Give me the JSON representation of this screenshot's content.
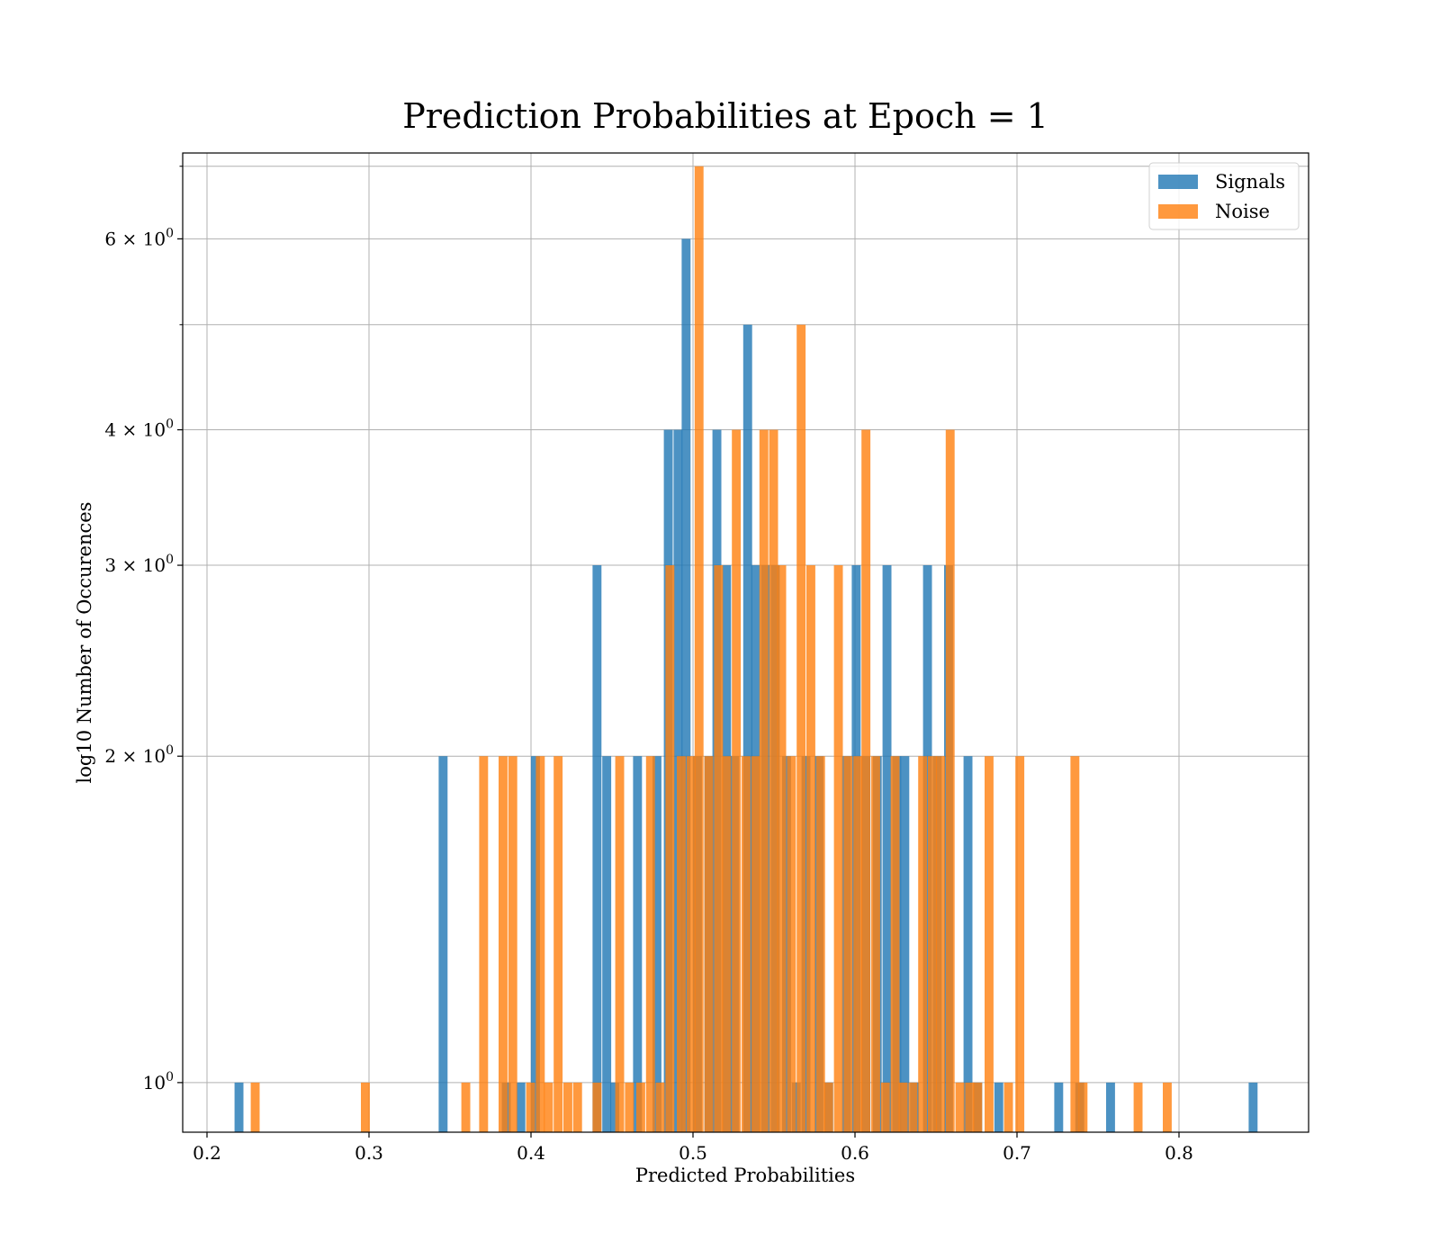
{
  "chart_data": {
    "type": "bar",
    "title": "Prediction Probabilities at Epoch = 1",
    "xlabel": "Predicted Probabilities",
    "ylabel": "log10 Number of Occurences",
    "yscale": "log",
    "xlim": [
      0.185,
      0.88
    ],
    "ylim": [
      0.9,
      7.2
    ],
    "grid": true,
    "legend_position": "top-right",
    "bin_width": 0.0055,
    "x_ticks": [
      0.2,
      0.3,
      0.4,
      0.5,
      0.6,
      0.7,
      0.8
    ],
    "x_tick_labels": [
      "0.2",
      "0.3",
      "0.4",
      "0.5",
      "0.6",
      "0.7",
      "0.8"
    ],
    "y_ticks": [
      {
        "value": 1,
        "base": "10",
        "exp": "0"
      },
      {
        "value": 2,
        "base": "2 × 10",
        "exp": "0"
      },
      {
        "value": 3,
        "base": "3 × 10",
        "exp": "0"
      },
      {
        "value": 4,
        "base": "4 × 10",
        "exp": "0"
      },
      {
        "value": 6,
        "base": "6 × 10",
        "exp": "0"
      }
    ],
    "y_minor_ticks": [
      5,
      7
    ],
    "series": [
      {
        "name": "Signals",
        "color": "#1f77b4",
        "opacity": 0.8,
        "bars": [
          {
            "x": 0.217,
            "y": 1
          },
          {
            "x": 0.343,
            "y": 2
          },
          {
            "x": 0.382,
            "y": 1
          },
          {
            "x": 0.391,
            "y": 1
          },
          {
            "x": 0.4,
            "y": 2
          },
          {
            "x": 0.438,
            "y": 3
          },
          {
            "x": 0.444,
            "y": 2
          },
          {
            "x": 0.449,
            "y": 1
          },
          {
            "x": 0.463,
            "y": 2
          },
          {
            "x": 0.475,
            "y": 2
          },
          {
            "x": 0.482,
            "y": 4
          },
          {
            "x": 0.488,
            "y": 4
          },
          {
            "x": 0.493,
            "y": 6
          },
          {
            "x": 0.5,
            "y": 2
          },
          {
            "x": 0.507,
            "y": 2
          },
          {
            "x": 0.512,
            "y": 4
          },
          {
            "x": 0.518,
            "y": 3
          },
          {
            "x": 0.523,
            "y": 2
          },
          {
            "x": 0.531,
            "y": 5
          },
          {
            "x": 0.536,
            "y": 3
          },
          {
            "x": 0.542,
            "y": 3
          },
          {
            "x": 0.548,
            "y": 3
          },
          {
            "x": 0.555,
            "y": 2
          },
          {
            "x": 0.561,
            "y": 1
          },
          {
            "x": 0.567,
            "y": 2
          },
          {
            "x": 0.575,
            "y": 2
          },
          {
            "x": 0.581,
            "y": 1
          },
          {
            "x": 0.592,
            "y": 2
          },
          {
            "x": 0.598,
            "y": 3
          },
          {
            "x": 0.604,
            "y": 2
          },
          {
            "x": 0.611,
            "y": 2
          },
          {
            "x": 0.617,
            "y": 3
          },
          {
            "x": 0.623,
            "y": 2
          },
          {
            "x": 0.628,
            "y": 2
          },
          {
            "x": 0.634,
            "y": 1
          },
          {
            "x": 0.642,
            "y": 3
          },
          {
            "x": 0.648,
            "y": 2
          },
          {
            "x": 0.655,
            "y": 3
          },
          {
            "x": 0.667,
            "y": 2
          },
          {
            "x": 0.673,
            "y": 1
          },
          {
            "x": 0.686,
            "y": 1
          },
          {
            "x": 0.723,
            "y": 1
          },
          {
            "x": 0.736,
            "y": 1
          },
          {
            "x": 0.755,
            "y": 1
          },
          {
            "x": 0.843,
            "y": 1
          }
        ]
      },
      {
        "name": "Noise",
        "color": "#ff7f0e",
        "opacity": 0.8,
        "bars": [
          {
            "x": 0.227,
            "y": 1
          },
          {
            "x": 0.295,
            "y": 1
          },
          {
            "x": 0.357,
            "y": 1
          },
          {
            "x": 0.368,
            "y": 2
          },
          {
            "x": 0.38,
            "y": 2
          },
          {
            "x": 0.386,
            "y": 2
          },
          {
            "x": 0.397,
            "y": 1
          },
          {
            "x": 0.403,
            "y": 2
          },
          {
            "x": 0.408,
            "y": 1
          },
          {
            "x": 0.414,
            "y": 2
          },
          {
            "x": 0.42,
            "y": 1
          },
          {
            "x": 0.426,
            "y": 1
          },
          {
            "x": 0.438,
            "y": 1
          },
          {
            "x": 0.452,
            "y": 2
          },
          {
            "x": 0.458,
            "y": 1
          },
          {
            "x": 0.465,
            "y": 1
          },
          {
            "x": 0.471,
            "y": 2
          },
          {
            "x": 0.477,
            "y": 1
          },
          {
            "x": 0.483,
            "y": 3
          },
          {
            "x": 0.49,
            "y": 2
          },
          {
            "x": 0.496,
            "y": 2
          },
          {
            "x": 0.501,
            "y": 7
          },
          {
            "x": 0.507,
            "y": 2
          },
          {
            "x": 0.513,
            "y": 3
          },
          {
            "x": 0.518,
            "y": 2
          },
          {
            "x": 0.524,
            "y": 4
          },
          {
            "x": 0.53,
            "y": 2
          },
          {
            "x": 0.536,
            "y": 2
          },
          {
            "x": 0.541,
            "y": 4
          },
          {
            "x": 0.547,
            "y": 4
          },
          {
            "x": 0.552,
            "y": 3
          },
          {
            "x": 0.558,
            "y": 2
          },
          {
            "x": 0.564,
            "y": 5
          },
          {
            "x": 0.57,
            "y": 3
          },
          {
            "x": 0.576,
            "y": 2
          },
          {
            "x": 0.581,
            "y": 1
          },
          {
            "x": 0.587,
            "y": 3
          },
          {
            "x": 0.593,
            "y": 2
          },
          {
            "x": 0.599,
            "y": 2
          },
          {
            "x": 0.604,
            "y": 4
          },
          {
            "x": 0.61,
            "y": 2
          },
          {
            "x": 0.616,
            "y": 1
          },
          {
            "x": 0.622,
            "y": 2
          },
          {
            "x": 0.627,
            "y": 1
          },
          {
            "x": 0.633,
            "y": 1
          },
          {
            "x": 0.639,
            "y": 2
          },
          {
            "x": 0.645,
            "y": 2
          },
          {
            "x": 0.65,
            "y": 2
          },
          {
            "x": 0.656,
            "y": 4
          },
          {
            "x": 0.662,
            "y": 1
          },
          {
            "x": 0.668,
            "y": 1
          },
          {
            "x": 0.673,
            "y": 1
          },
          {
            "x": 0.68,
            "y": 2
          },
          {
            "x": 0.692,
            "y": 1
          },
          {
            "x": 0.699,
            "y": 2
          },
          {
            "x": 0.733,
            "y": 2
          },
          {
            "x": 0.738,
            "y": 1
          },
          {
            "x": 0.772,
            "y": 1
          },
          {
            "x": 0.79,
            "y": 1
          }
        ]
      }
    ]
  }
}
